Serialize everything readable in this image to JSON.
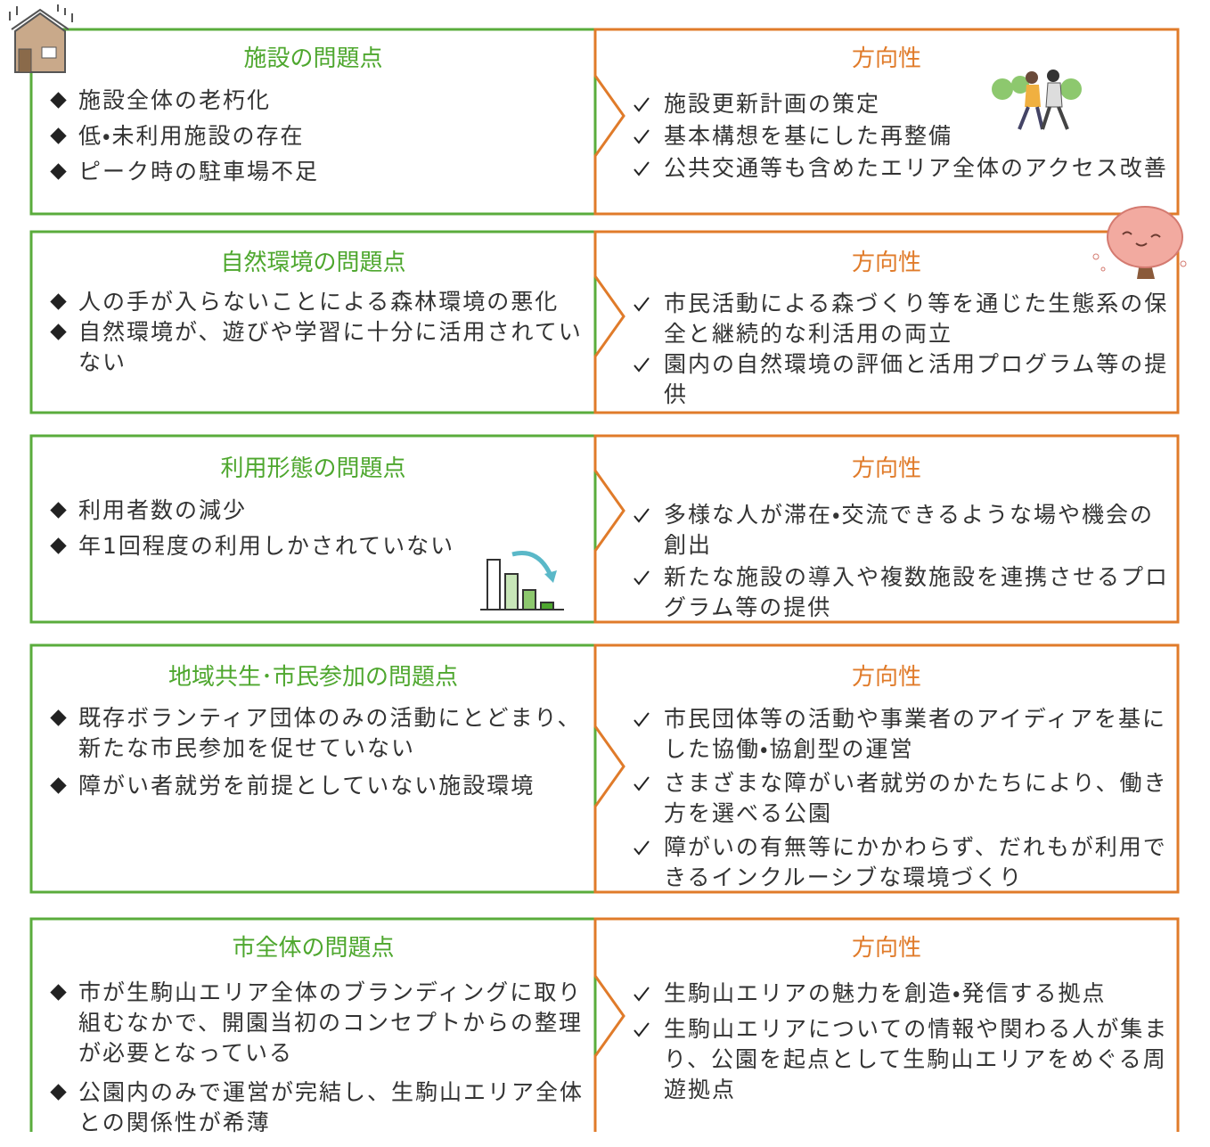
{
  "rows": [
    {
      "problem_title": "施設の問題点",
      "problems": [
        "施設全体の老朽化",
        "低・未利用施設の存在",
        "ピーク時の駐車場不足"
      ],
      "direction_title": "方向性",
      "directions": [
        "施設更新計画の策定",
        "基本構想を基にした再整備",
        "公共交通等も含めたエリア全体のアクセス改善"
      ]
    },
    {
      "problem_title": "自然環境の問題点",
      "problems": [
        "人の手が入らないことによる森林環境の悪化",
        "自然環境が、遊びや学習に十分に活用されていない"
      ],
      "direction_title": "方向性",
      "directions": [
        "市民活動による森づくり等を通じた生態系の保全と継続的な利活用の両立",
        "園内の自然環境の評価と活用プログラム等の提供"
      ]
    },
    {
      "problem_title": "利用形態の問題点",
      "problems": [
        "利用者数の減少",
        "年1回程度の利用しかされていない"
      ],
      "direction_title": "方向性",
      "directions": [
        "多様な人が滞在・交流できるような場や機会の創出",
        "新たな施設の導入や複数施設を連携させるプログラム等の提供"
      ]
    },
    {
      "problem_title": "地域共生･市民参加の問題点",
      "problems": [
        "既存ボランティア団体のみの活動にとどまり、新たな市民参加を促せていない",
        "障がい者就労を前提としていない施設環境"
      ],
      "direction_title": "方向性",
      "directions": [
        "市民団体等の活動や事業者のアイディアを基にした協働・協創型の運営",
        "さまざまな障がい者就労のかたちにより、働き方を選べる公園",
        "障がいの有無等にかかわらず、だれもが利用できるインクルーシブな環境づくり"
      ]
    },
    {
      "problem_title": "市全体の問題点",
      "problems": [
        "市が生駒山エリア全体のブランディングに取り組むなかで、開園当初のコンセプトからの整理が必要となっている",
        "公園内のみで運営が完結し、生駒山エリア全体との関係性が希薄"
      ],
      "direction_title": "方向性",
      "directions": [
        "生駒山エリアの魅力を創造・発信する拠点",
        "生駒山エリアについての情報や関わる人が集まり、公園を起点として生駒山エリアをめぐる周遊拠点"
      ]
    }
  ]
}
